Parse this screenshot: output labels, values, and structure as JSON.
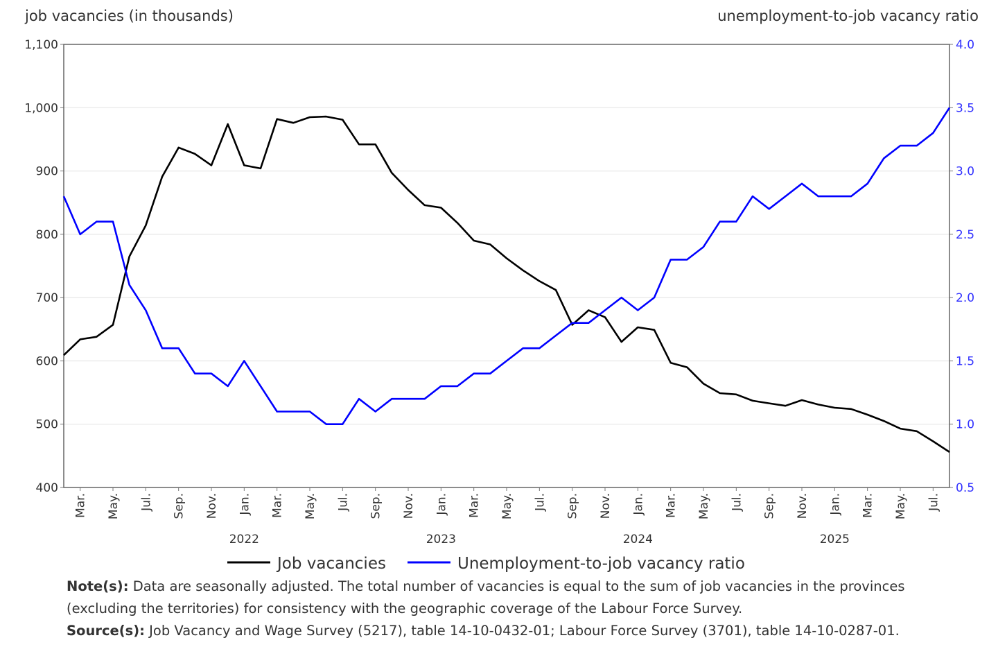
{
  "chart_data": {
    "type": "line",
    "left_axis_title": "job vacancies (in thousands)",
    "right_axis_title": "unemployment-to-job vacancy ratio",
    "left_ylim": [
      400,
      1100
    ],
    "left_ticks": [
      "400",
      "500",
      "600",
      "700",
      "800",
      "900",
      "1,000",
      "1,100"
    ],
    "right_ylim": [
      0.5,
      4.0
    ],
    "right_ticks": [
      "0.5",
      "1.0",
      "1.5",
      "2.0",
      "2.5",
      "3.0",
      "3.5",
      "4.0"
    ],
    "grid": true,
    "x_start": "2021-02",
    "x_end": "2025-08",
    "month_labels": [
      "Mar.",
      "May.",
      "Jul.",
      "Sep.",
      "Nov.",
      "Jan.",
      "Mar.",
      "May.",
      "Jul.",
      "Sep.",
      "Nov.",
      "Jan.",
      "Mar.",
      "May.",
      "Jul.",
      "Sep.",
      "Nov.",
      "Jan.",
      "Mar.",
      "May.",
      "Jul.",
      "Sep.",
      "Nov.",
      "Jan.",
      "Mar.",
      "May.",
      "Jul."
    ],
    "year_labels": [
      "2022",
      "2023",
      "2024",
      "2025"
    ],
    "legend_position": "bottom",
    "series": [
      {
        "name": "Job vacancies",
        "axis": "left",
        "color": "#000000",
        "values": [
          609,
          634,
          638,
          657,
          765,
          814,
          891,
          937,
          927,
          909,
          974,
          909,
          904,
          982,
          976,
          985,
          986,
          981,
          942,
          942,
          897,
          870,
          846,
          842,
          818,
          790,
          784,
          762,
          743,
          726,
          712,
          657,
          680,
          669,
          630,
          653,
          649,
          597,
          590,
          564,
          549,
          547,
          537,
          533,
          529,
          538,
          531,
          526,
          524,
          515,
          505,
          493,
          489,
          473,
          456
        ]
      },
      {
        "name": "Unemployment-to-job vacancy ratio",
        "axis": "right",
        "color": "#0000ff",
        "values": [
          2.8,
          2.5,
          2.6,
          2.6,
          2.1,
          1.9,
          1.6,
          1.6,
          1.4,
          1.4,
          1.3,
          1.5,
          1.3,
          1.1,
          1.1,
          1.1,
          1.0,
          1.0,
          1.2,
          1.1,
          1.2,
          1.2,
          1.2,
          1.3,
          1.3,
          1.4,
          1.4,
          1.5,
          1.6,
          1.6,
          1.7,
          1.8,
          1.8,
          1.9,
          2.0,
          1.9,
          2.0,
          2.3,
          2.3,
          2.4,
          2.6,
          2.6,
          2.8,
          2.7,
          2.8,
          2.9,
          2.8,
          2.8,
          2.8,
          2.9,
          3.1,
          3.2,
          3.2,
          3.3,
          3.5
        ]
      }
    ]
  },
  "notes": {
    "note_label": "Note(s):",
    "note_text": " Data are seasonally adjusted. The total number of vacancies is equal to the sum of job vacancies in the provinces (excluding the territories) for consistency with the geographic coverage of the Labour Force Survey.",
    "source_label": "Source(s):",
    "source_text": " Job Vacancy and Wage Survey (5217), table 14-10-0432-01; Labour Force Survey (3701), table 14-10-0287-01."
  }
}
